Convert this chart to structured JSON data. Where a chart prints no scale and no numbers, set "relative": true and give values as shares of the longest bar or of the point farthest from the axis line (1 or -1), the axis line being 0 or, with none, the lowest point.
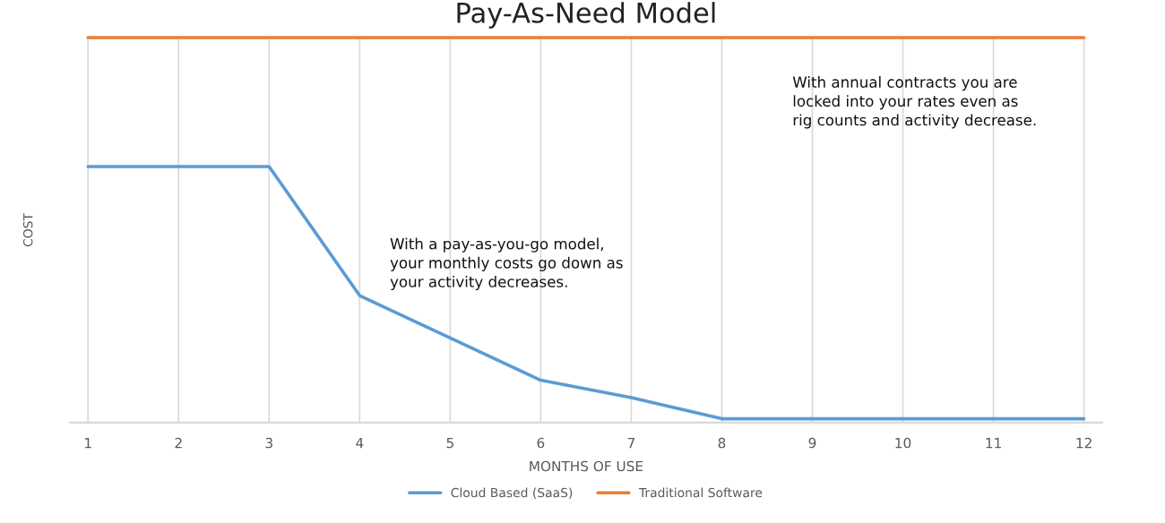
{
  "chart_data": {
    "type": "line",
    "title": "Pay-As-Need Model",
    "xlabel": "MONTHS OF USE",
    "ylabel": "COST",
    "relative": true,
    "grid": "x",
    "legend": "bottom",
    "marker": "none",
    "line_style": "solid",
    "categories": [
      "1",
      "2",
      "3",
      "4",
      "5",
      "6",
      "7",
      "8",
      "9",
      "10",
      "11",
      "12"
    ],
    "series": [
      {
        "name": "Cloud Based (SaaS)",
        "color": "#5b9bd5",
        "values": [
          0.665,
          0.665,
          0.665,
          0.33,
          0.22,
          0.11,
          0.065,
          0.01,
          0.01,
          0.01,
          0.01,
          0.01
        ]
      },
      {
        "name": "Traditional Software",
        "color": "#ed7d31",
        "values": [
          1,
          1,
          1,
          1,
          1,
          1,
          1,
          1,
          1,
          1,
          1,
          1
        ]
      }
    ],
    "annotations": [
      "With a pay-as-you-go model,\nyour monthly costs go down as\nyour activity decreases.",
      "With annual contracts you are\nlocked into your rates even as\nrig counts and activity decrease."
    ]
  }
}
